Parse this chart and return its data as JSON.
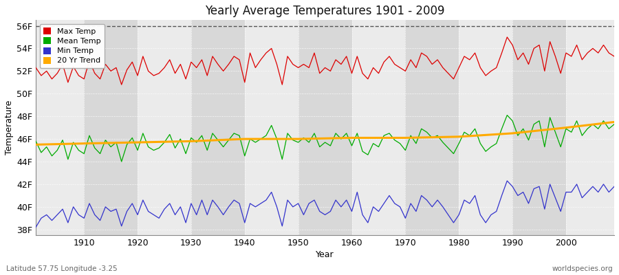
{
  "title": "Yearly Average Temperatures 1901 - 2009",
  "xlabel": "Year",
  "ylabel": "Temperature",
  "subtitle_lat": "Latitude 57.75 Longitude -3.25",
  "watermark": "worldspecies.org",
  "ylim": [
    37.5,
    56.5
  ],
  "yticks": [
    38,
    40,
    42,
    44,
    46,
    48,
    50,
    52,
    54,
    56
  ],
  "ytick_labels": [
    "38F",
    "40F",
    "42F",
    "44F",
    "46F",
    "48F",
    "50F",
    "52F",
    "54F",
    "56F"
  ],
  "xlim": [
    1901,
    2009
  ],
  "xticks": [
    1910,
    1920,
    1930,
    1940,
    1950,
    1960,
    1970,
    1980,
    1990,
    2000
  ],
  "bg_color_light": "#ebebeb",
  "bg_color_dark": "#d8d8d8",
  "fig_bg_color": "#ffffff",
  "grid_color": "#ffffff",
  "dashed_top_color": "#555555",
  "legend_entries": [
    "Max Temp",
    "Mean Temp",
    "Min Temp",
    "20 Yr Trend"
  ],
  "legend_colors": [
    "#dd0000",
    "#00aa00",
    "#3333cc",
    "#ffaa00"
  ],
  "years": [
    1901,
    1902,
    1903,
    1904,
    1905,
    1906,
    1907,
    1908,
    1909,
    1910,
    1911,
    1912,
    1913,
    1914,
    1915,
    1916,
    1917,
    1918,
    1919,
    1920,
    1921,
    1922,
    1923,
    1924,
    1925,
    1926,
    1927,
    1928,
    1929,
    1930,
    1931,
    1932,
    1933,
    1934,
    1935,
    1936,
    1937,
    1938,
    1939,
    1940,
    1941,
    1942,
    1943,
    1944,
    1945,
    1946,
    1947,
    1948,
    1949,
    1950,
    1951,
    1952,
    1953,
    1954,
    1955,
    1956,
    1957,
    1958,
    1959,
    1960,
    1961,
    1962,
    1963,
    1964,
    1965,
    1966,
    1967,
    1968,
    1969,
    1970,
    1971,
    1972,
    1973,
    1974,
    1975,
    1976,
    1977,
    1978,
    1979,
    1980,
    1981,
    1982,
    1983,
    1984,
    1985,
    1986,
    1987,
    1988,
    1989,
    1990,
    1991,
    1992,
    1993,
    1994,
    1995,
    1996,
    1997,
    1998,
    1999,
    2000,
    2001,
    2002,
    2003,
    2004,
    2005,
    2006,
    2007,
    2008,
    2009
  ],
  "max_temp": [
    52.3,
    51.6,
    52.0,
    51.3,
    51.8,
    52.6,
    51.0,
    52.4,
    51.6,
    51.3,
    52.9,
    51.8,
    51.3,
    52.6,
    52.0,
    52.3,
    50.8,
    52.1,
    52.8,
    51.6,
    53.3,
    52.0,
    51.6,
    51.8,
    52.3,
    53.0,
    51.8,
    52.6,
    51.3,
    52.8,
    52.3,
    53.0,
    51.6,
    53.3,
    52.6,
    52.0,
    52.6,
    53.3,
    53.0,
    51.0,
    53.6,
    52.3,
    53.0,
    53.6,
    54.0,
    52.6,
    50.8,
    53.3,
    52.6,
    52.3,
    52.6,
    52.3,
    53.6,
    51.8,
    52.3,
    52.0,
    53.0,
    52.6,
    53.3,
    51.8,
    53.3,
    51.8,
    51.3,
    52.3,
    51.8,
    52.8,
    53.3,
    52.6,
    52.3,
    52.0,
    53.0,
    52.3,
    53.6,
    53.3,
    52.6,
    53.0,
    52.3,
    51.8,
    51.3,
    52.3,
    53.3,
    53.0,
    53.6,
    52.3,
    51.6,
    52.0,
    52.3,
    53.6,
    55.0,
    54.3,
    53.0,
    53.6,
    52.6,
    54.0,
    54.3,
    52.0,
    54.6,
    53.3,
    51.8,
    53.6,
    53.3,
    54.3,
    53.0,
    53.6,
    54.0,
    53.6,
    54.3,
    53.6,
    53.3
  ],
  "mean_temp": [
    45.8,
    44.8,
    45.3,
    44.5,
    45.0,
    45.9,
    44.2,
    45.7,
    45.0,
    44.7,
    46.3,
    45.2,
    44.7,
    45.9,
    45.3,
    45.7,
    44.0,
    45.5,
    46.1,
    45.0,
    46.5,
    45.3,
    45.0,
    45.2,
    45.7,
    46.4,
    45.2,
    46.0,
    44.7,
    46.1,
    45.7,
    46.3,
    45.0,
    46.5,
    45.9,
    45.3,
    45.9,
    46.5,
    46.3,
    44.5,
    46.0,
    45.7,
    46.0,
    46.3,
    47.2,
    46.0,
    44.2,
    46.5,
    45.9,
    45.7,
    46.1,
    45.7,
    46.5,
    45.3,
    45.7,
    45.4,
    46.5,
    46.0,
    46.5,
    45.4,
    46.5,
    44.9,
    44.6,
    45.6,
    45.3,
    46.3,
    46.5,
    45.9,
    45.6,
    45.0,
    46.3,
    45.6,
    46.9,
    46.6,
    46.1,
    46.3,
    45.7,
    45.2,
    44.7,
    45.6,
    46.6,
    46.3,
    46.9,
    45.6,
    44.9,
    45.3,
    45.6,
    46.9,
    48.1,
    47.6,
    46.3,
    46.9,
    45.9,
    47.3,
    47.6,
    45.3,
    47.9,
    46.6,
    45.3,
    46.9,
    46.6,
    47.6,
    46.3,
    46.9,
    47.3,
    46.9,
    47.6,
    46.9,
    47.3
  ],
  "min_temp": [
    38.2,
    39.0,
    39.3,
    38.8,
    39.3,
    39.8,
    38.6,
    40.0,
    39.3,
    39.0,
    40.3,
    39.3,
    38.8,
    40.0,
    39.6,
    39.8,
    38.3,
    39.6,
    40.3,
    39.3,
    40.6,
    39.6,
    39.3,
    39.0,
    39.8,
    40.3,
    39.3,
    40.0,
    38.6,
    40.3,
    39.3,
    40.6,
    39.3,
    40.6,
    40.0,
    39.3,
    40.0,
    40.6,
    40.3,
    38.6,
    40.3,
    40.0,
    40.3,
    40.6,
    41.3,
    40.0,
    38.3,
    40.6,
    40.0,
    40.3,
    39.3,
    40.3,
    40.6,
    39.6,
    39.3,
    39.6,
    40.6,
    40.0,
    40.6,
    39.6,
    41.3,
    39.3,
    38.6,
    40.0,
    39.6,
    40.3,
    41.0,
    40.3,
    40.0,
    39.0,
    40.3,
    39.6,
    41.0,
    40.6,
    40.0,
    40.6,
    40.0,
    39.3,
    38.6,
    39.3,
    40.6,
    40.3,
    41.0,
    39.3,
    38.6,
    39.3,
    39.6,
    41.0,
    42.3,
    41.8,
    41.0,
    41.3,
    40.3,
    41.6,
    41.8,
    39.8,
    42.0,
    40.8,
    39.6,
    41.3,
    41.3,
    42.0,
    40.8,
    41.3,
    41.8,
    41.3,
    42.0,
    41.3,
    41.8
  ],
  "trend_years": [
    1901,
    1910,
    1920,
    1930,
    1940,
    1950,
    1960,
    1970,
    1980,
    1990,
    2000,
    2009
  ],
  "trend_vals": [
    45.5,
    45.6,
    45.7,
    45.8,
    46.0,
    46.0,
    46.1,
    46.1,
    46.2,
    46.5,
    47.0,
    47.5
  ]
}
